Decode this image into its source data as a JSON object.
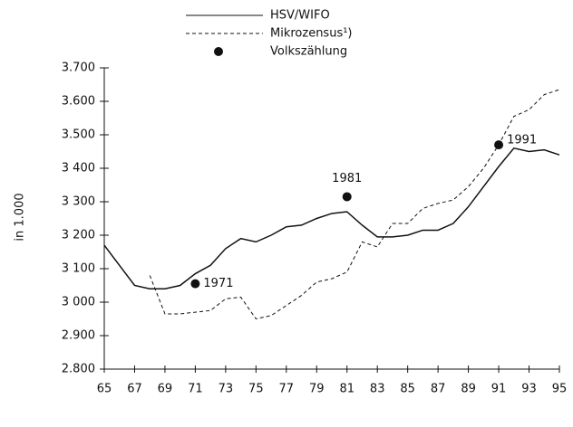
{
  "chart_data": {
    "type": "line",
    "y_label": "in 1.000",
    "x": [
      65,
      66,
      67,
      68,
      69,
      70,
      71,
      72,
      73,
      74,
      75,
      76,
      77,
      78,
      79,
      80,
      81,
      82,
      83,
      84,
      85,
      86,
      87,
      88,
      89,
      90,
      91,
      92,
      93,
      94,
      95
    ],
    "series": [
      {
        "name": "HSV/WIFO",
        "color": "#111111",
        "style": "solid",
        "values": [
          3170,
          3110,
          3050,
          3040,
          3040,
          3050,
          3085,
          3110,
          3160,
          3190,
          3180,
          3200,
          3225,
          3230,
          3250,
          3265,
          3270,
          3230,
          3195,
          3195,
          3200,
          3215,
          3215,
          3235,
          3285,
          3345,
          3405,
          3460,
          3450,
          3455,
          3440
        ]
      },
      {
        "name": "Mikrozensus¹)",
        "color": "#111111",
        "style": "dashed",
        "values": [
          null,
          null,
          null,
          3080,
          2965,
          2965,
          2970,
          2975,
          3010,
          3015,
          2950,
          2960,
          2990,
          3020,
          3060,
          3070,
          3090,
          3180,
          3165,
          3235,
          3235,
          3280,
          3295,
          3305,
          3345,
          3400,
          3470,
          3555,
          3575,
          3620,
          3635
        ]
      }
    ],
    "points": {
      "name": "Volkszählung",
      "color": "#111111",
      "x": [
        71,
        81,
        91
      ],
      "values": [
        3055,
        3315,
        3470
      ],
      "labels": [
        "1971",
        "1981",
        "1991"
      ]
    },
    "xlim": [
      65,
      95
    ],
    "xticks": [
      65,
      67,
      69,
      71,
      73,
      75,
      77,
      79,
      81,
      83,
      85,
      87,
      89,
      91,
      93,
      95
    ],
    "ylim": [
      2800,
      3700
    ],
    "yticks": [
      {
        "value": 2800,
        "label": "2.800"
      },
      {
        "value": 2900,
        "label": "2.900"
      },
      {
        "value": 3000,
        "label": "3 000"
      },
      {
        "value": 3100,
        "label": "3 100"
      },
      {
        "value": 3200,
        "label": "3 200"
      },
      {
        "value": 3300,
        "label": "3 300"
      },
      {
        "value": 3400,
        "label": "3 400"
      },
      {
        "value": 3500,
        "label": "3.500"
      },
      {
        "value": 3600,
        "label": "3.600"
      },
      {
        "value": 3700,
        "label": "3.700"
      }
    ]
  }
}
